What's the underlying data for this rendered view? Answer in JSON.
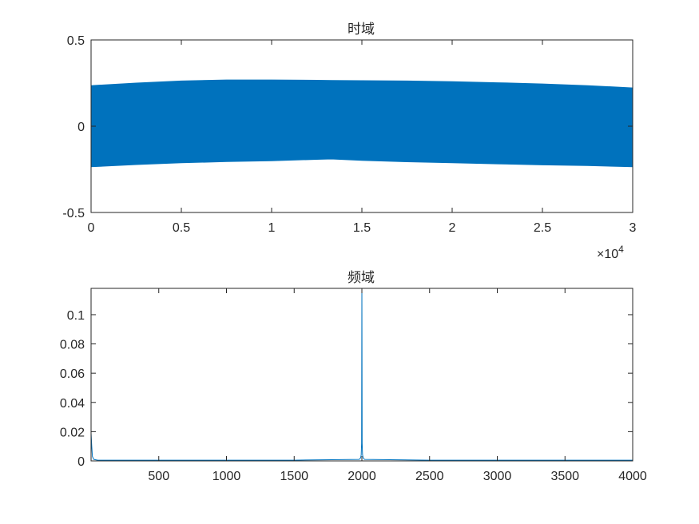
{
  "chart_data": [
    {
      "type": "area",
      "title": "时域",
      "xlabel": "",
      "ylabel": "",
      "xlim": [
        0,
        30000
      ],
      "ylim": [
        -0.5,
        0.5
      ],
      "x_exponent_label": "×10",
      "x_exponent_power": "4",
      "x_ticks": [
        0,
        5000,
        10000,
        15000,
        20000,
        25000,
        30000
      ],
      "x_tick_labels": [
        "0",
        "0.5",
        "1",
        "1.5",
        "2",
        "2.5",
        "3"
      ],
      "y_ticks": [
        -0.5,
        0,
        0.5
      ],
      "y_tick_labels": [
        "-0.5",
        "0",
        "0.5"
      ],
      "grid": false,
      "envelope": {
        "x": [
          0,
          2500,
          5000,
          7500,
          10000,
          12500,
          13300,
          15000,
          17500,
          20000,
          22500,
          25000,
          27500,
          30000
        ],
        "upper": [
          0.235,
          0.25,
          0.262,
          0.268,
          0.268,
          0.266,
          0.265,
          0.264,
          0.262,
          0.258,
          0.252,
          0.245,
          0.235,
          0.222
        ],
        "lower": [
          -0.235,
          -0.222,
          -0.212,
          -0.205,
          -0.2,
          -0.192,
          -0.19,
          -0.198,
          -0.206,
          -0.212,
          -0.218,
          -0.224,
          -0.228,
          -0.235
        ]
      },
      "color": "#0072BD"
    },
    {
      "type": "line",
      "title": "频域",
      "xlabel": "",
      "ylabel": "",
      "xlim": [
        0,
        4000
      ],
      "ylim": [
        0,
        0.118
      ],
      "x_ticks": [
        500,
        1000,
        1500,
        2000,
        2500,
        3000,
        3500,
        4000
      ],
      "x_tick_labels": [
        "500",
        "1000",
        "1500",
        "2000",
        "2500",
        "3000",
        "3500",
        "4000"
      ],
      "y_ticks": [
        0,
        0.02,
        0.04,
        0.06,
        0.08,
        0.1
      ],
      "y_tick_labels": [
        "0",
        "0.02",
        "0.04",
        "0.06",
        "0.08",
        "0.1"
      ],
      "grid": false,
      "series": [
        {
          "x": [
            0,
            5,
            10,
            20,
            50,
            500,
            1000,
            1500,
            1980,
            1990,
            1995,
            1998,
            2000,
            2002,
            2005,
            2010,
            2020,
            2500,
            3000,
            3500,
            4000
          ],
          "values": [
            0.019,
            0.01,
            0.003,
            0.001,
            0.0005,
            0.0005,
            0.0005,
            0.0005,
            0.001,
            0.002,
            0.004,
            0.012,
            0.118,
            0.012,
            0.004,
            0.002,
            0.001,
            0.0005,
            0.0005,
            0.0005,
            0.0005
          ]
        }
      ],
      "color": "#0072BD"
    }
  ]
}
